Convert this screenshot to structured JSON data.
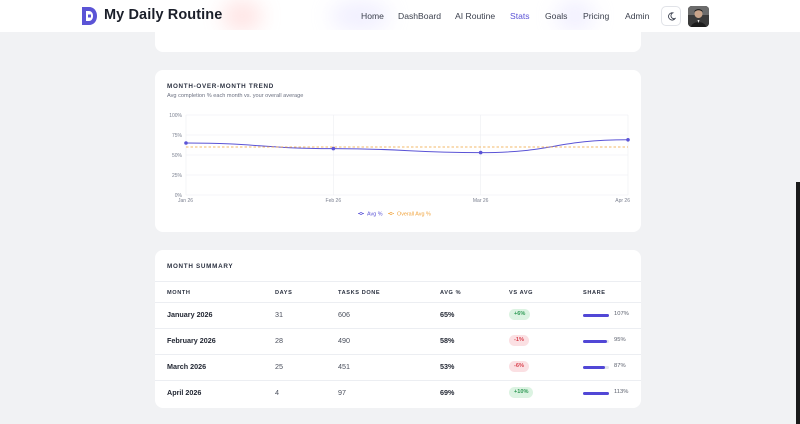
{
  "header": {
    "brand": "My Daily Routine",
    "nav": [
      {
        "label": "Home",
        "active": false
      },
      {
        "label": "DashBoard",
        "active": false
      },
      {
        "label": "AI Routine",
        "active": false
      },
      {
        "label": "Stats",
        "active": true
      },
      {
        "label": "Goals",
        "active": false
      },
      {
        "label": "Pricing",
        "active": false
      },
      {
        "label": "Admin",
        "active": false
      }
    ],
    "theme_icon": "moon-icon",
    "logo_icon": "logo-icon",
    "accent": "#5b54d6"
  },
  "trend": {
    "title": "MONTH-OVER-MONTH TREND",
    "subtitle": "Avg completion % each month vs. your overall average",
    "chart_data": {
      "type": "line",
      "x": [
        "Jan 26",
        "Feb 26",
        "Mar 26",
        "Apr 26"
      ],
      "y_ticks": [
        "100%",
        "75%",
        "50%",
        "25%",
        "0%"
      ],
      "ylim": [
        0,
        100
      ],
      "grid": true,
      "legend_position": "bottom",
      "series": [
        {
          "name": "Avg %",
          "values": [
            65,
            58,
            53,
            69
          ],
          "color": "#5b54d6",
          "style": "solid"
        },
        {
          "name": "Overall Avg %",
          "values": [
            60,
            60,
            60,
            60
          ],
          "color": "#f0a23a",
          "style": "dashed"
        }
      ]
    }
  },
  "summary": {
    "title": "MONTH SUMMARY",
    "columns": [
      "MONTH",
      "DAYS",
      "TASKS DONE",
      "AVG %",
      "VS AVG",
      "SHARE"
    ],
    "rows": [
      {
        "month": "January 2026",
        "days": "31",
        "tasks": "606",
        "avg": "65%",
        "vs": "+6%",
        "vs_positive": true,
        "share": "107%",
        "share_value": 107
      },
      {
        "month": "February 2026",
        "days": "28",
        "tasks": "490",
        "avg": "58%",
        "vs": "-1%",
        "vs_positive": false,
        "share": "95%",
        "share_value": 95
      },
      {
        "month": "March 2026",
        "days": "25",
        "tasks": "451",
        "avg": "53%",
        "vs": "-6%",
        "vs_positive": false,
        "share": "87%",
        "share_value": 87
      },
      {
        "month": "April 2026",
        "days": "4",
        "tasks": "97",
        "avg": "69%",
        "vs": "+10%",
        "vs_positive": true,
        "share": "113%",
        "share_value": 113
      }
    ]
  }
}
